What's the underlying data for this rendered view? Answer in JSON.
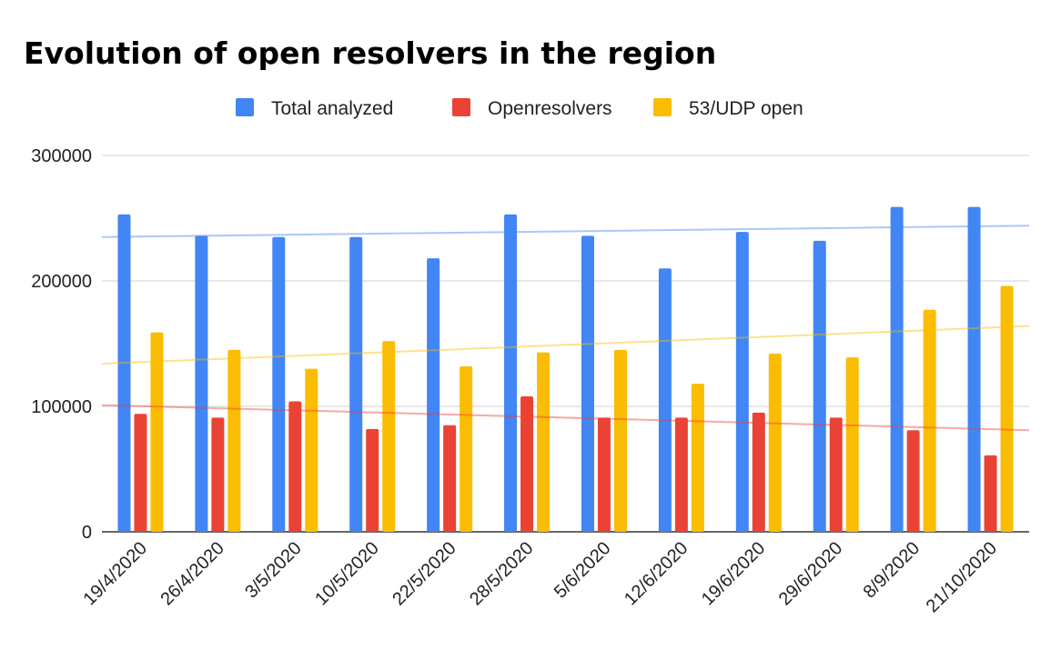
{
  "chart_data": {
    "type": "bar",
    "title": "Evolution of open resolvers in the region",
    "xlabel": "",
    "ylabel": "",
    "ylim": [
      0,
      300000
    ],
    "yticks": [
      "0",
      "100000",
      "200000",
      "300000"
    ],
    "grid": true,
    "legend_position": "top",
    "categories": [
      "19/4/2020",
      "26/4/2020",
      "3/5/2020",
      "10/5/2020",
      "22/5/2020",
      "28/5/2020",
      "5/6/2020",
      "12/6/2020",
      "19/6/2020",
      "29/6/2020",
      "8/9/2020",
      "21/10/2020"
    ],
    "series": [
      {
        "name": "Total analyzed",
        "color": "#4285F4",
        "values": [
          253000,
          236000,
          235000,
          235000,
          218000,
          253000,
          236000,
          210000,
          239000,
          232000,
          259000,
          259000
        ],
        "trendline": [
          235000,
          244000
        ]
      },
      {
        "name": "Openresolvers",
        "color": "#EA4335",
        "values": [
          94000,
          91000,
          104000,
          82000,
          85000,
          108000,
          91000,
          91000,
          95000,
          91000,
          81000,
          61000
        ],
        "trendline": [
          101000,
          81000
        ]
      },
      {
        "name": "53/UDP open",
        "color": "#FBBC04",
        "values": [
          159000,
          145000,
          130000,
          152000,
          132000,
          143000,
          145000,
          118000,
          142000,
          139000,
          177000,
          196000
        ],
        "trendline": [
          134000,
          164000
        ]
      }
    ]
  }
}
